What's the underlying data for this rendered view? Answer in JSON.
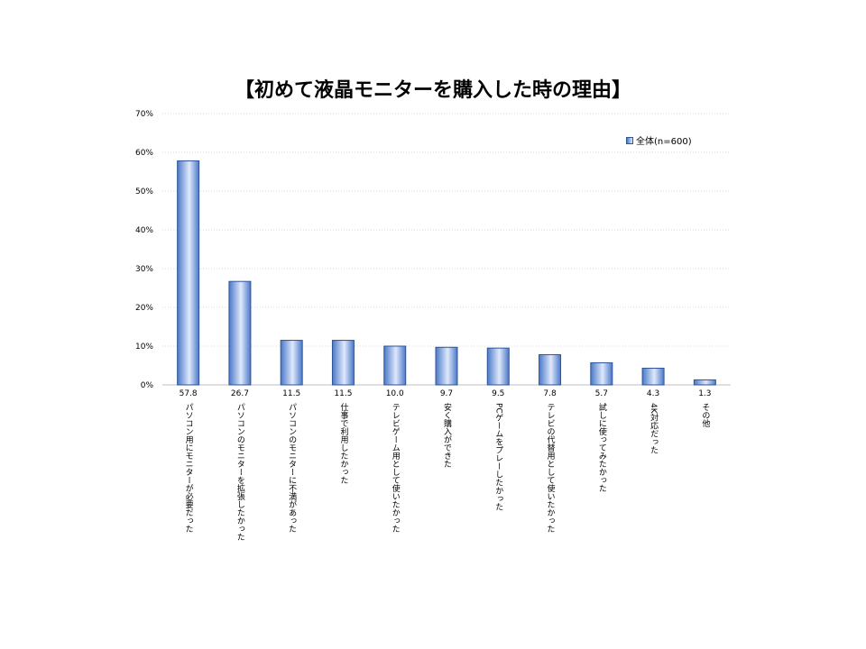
{
  "chart_data": {
    "type": "bar",
    "title": "【初めて液晶モニターを購入した時の理由】",
    "categories": [
      "パソコン用にモニターが必要だった",
      "パソコンのモニターを拡張したかった",
      "パソコンのモニターに不満があった",
      "仕事で利用したかった",
      "テレビゲーム用として使いたかった",
      "安く購入ができた",
      "PCゲームをプレーしたかった",
      "テレビの代替用として使いたかった",
      "試しに使ってみたかった",
      "4K対応だった",
      "その他"
    ],
    "series": [
      {
        "name": "全体(n=600)",
        "values": [
          57.8,
          26.7,
          11.5,
          11.5,
          10.0,
          9.7,
          9.5,
          7.8,
          5.7,
          4.3,
          1.3
        ]
      }
    ],
    "data_labels": [
      "57.8",
      "26.7",
      "11.5",
      "11.5",
      "10.0",
      "9.7",
      "9.5",
      "7.8",
      "5.7",
      "4.3",
      "1.3"
    ],
    "ylim": [
      0,
      70
    ],
    "yticks": [
      0,
      10,
      20,
      30,
      40,
      50,
      60,
      70
    ],
    "ytick_labels": [
      "0%",
      "10%",
      "20%",
      "30%",
      "40%",
      "50%",
      "60%",
      "70%"
    ],
    "grid": true,
    "legend_position": "top-right",
    "colors": {
      "bar_dark": "#4a78c8",
      "bar_light": "#dfe9fb",
      "bar_edge": "#2f5597",
      "grid": "#d9d9d9"
    }
  }
}
